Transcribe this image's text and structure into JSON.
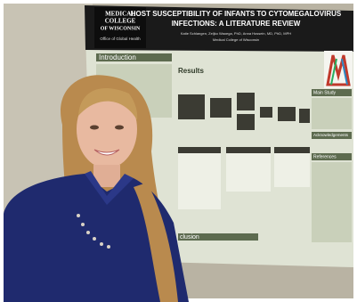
{
  "poster": {
    "logo": {
      "line1": "MEDICAL",
      "line2": "COLLEGE",
      "line3": "OF WISCONSIN",
      "line4": "Office of Global Health"
    },
    "title_line1": "HOST SUSCEPTIBILITY OF INFANTS TO CYTOMEGALOVIRUS",
    "title_line2": "INFECTIONS: A LITERATURE REVIEW",
    "authors": "Katie Schlangen, Zeljko Waoega, PhD, Anna Hossein, MD, PhD, MPH",
    "affiliation": "Medical College of Wisconsin",
    "sections": {
      "introduction": "Introduction",
      "results": "Results",
      "main_study": "Main Study",
      "acknowledgements": "Acknowledgements",
      "references": "References",
      "conclusion": "clusion"
    }
  }
}
